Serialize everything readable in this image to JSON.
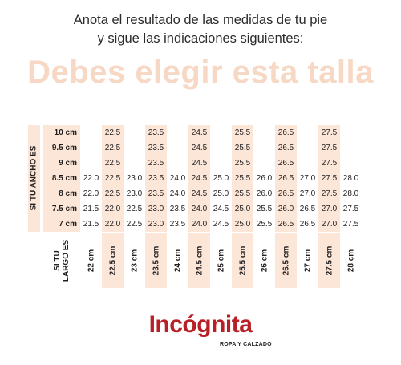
{
  "intro": {
    "line1": "Anota el resultado de las medidas de tu pie",
    "line2": "y sigue las indicaciones siguientes:"
  },
  "headline": "Debes elegir esta talla",
  "table": {
    "width_label": "SI TU ANCHO ES",
    "length_label_line1": "SI TU",
    "length_label_line2": "LARGO ES",
    "lengths": [
      "22 cm",
      "22.5 cm",
      "23 cm",
      "23.5 cm",
      "24 cm",
      "24.5 cm",
      "25 cm",
      "25.5 cm",
      "26 cm",
      "26.5 cm",
      "27 cm",
      "27.5 cm",
      "28 cm"
    ],
    "rows": [
      {
        "width": "10 cm",
        "values": [
          "",
          "22.5",
          "",
          "23.5",
          "",
          "24.5",
          "",
          "25.5",
          "",
          "26.5",
          "",
          "27.5",
          ""
        ]
      },
      {
        "width": "9.5 cm",
        "values": [
          "",
          "22.5",
          "",
          "23.5",
          "",
          "24.5",
          "",
          "25.5",
          "",
          "26.5",
          "",
          "27.5",
          ""
        ]
      },
      {
        "width": "9 cm",
        "values": [
          "",
          "22.5",
          "",
          "23.5",
          "",
          "24.5",
          "",
          "25.5",
          "",
          "26.5",
          "",
          "27.5",
          ""
        ]
      },
      {
        "width": "8.5 cm",
        "values": [
          "22.0",
          "22.5",
          "23.0",
          "23.5",
          "24.0",
          "24.5",
          "25.0",
          "25.5",
          "26.0",
          "26.5",
          "27.0",
          "27.5",
          "28.0"
        ]
      },
      {
        "width": "8 cm",
        "values": [
          "22.0",
          "22.5",
          "23.0",
          "23.5",
          "24.0",
          "24.5",
          "25.0",
          "25.5",
          "26.0",
          "26.5",
          "27.0",
          "27.5",
          "28.0"
        ]
      },
      {
        "width": "7.5 cm",
        "values": [
          "21.5",
          "22.0",
          "22.5",
          "23.0",
          "23.5",
          "24.0",
          "24.5",
          "25.0",
          "25.5",
          "26.0",
          "26.5",
          "27.0",
          "27.5"
        ]
      },
      {
        "width": "7 cm",
        "values": [
          "21.5",
          "22.0",
          "22.5",
          "23.0",
          "23.5",
          "24.0",
          "24.5",
          "25.0",
          "25.5",
          "26.5",
          "26.5",
          "27.0",
          "27.5"
        ]
      }
    ]
  },
  "logo": {
    "brand": "Incógnita",
    "tagline": "ROPA Y CALZADO"
  },
  "colors": {
    "accent": "#f7d8c4",
    "shade": "#fbe6d8",
    "brand_red": "#b81f26"
  }
}
